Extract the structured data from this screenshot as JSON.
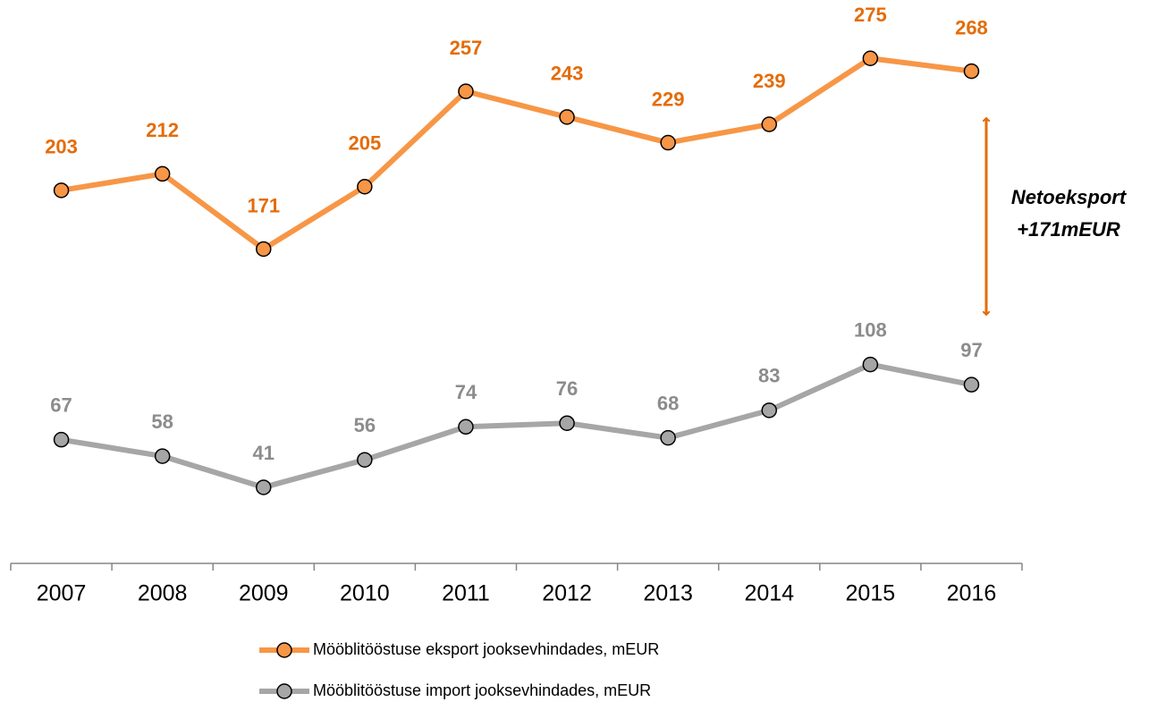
{
  "chart_data": {
    "type": "line",
    "categories": [
      "2007",
      "2008",
      "2009",
      "2010",
      "2011",
      "2012",
      "2013",
      "2014",
      "2015",
      "2016"
    ],
    "series": [
      {
        "name": "Mööblitööstuse eksport jooksevhindades, mEUR",
        "color": "#f79646",
        "label_color": "#e46c0a",
        "values": [
          203,
          212,
          171,
          205,
          257,
          243,
          229,
          239,
          275,
          268
        ]
      },
      {
        "name": "Mööblitööstuse import jooksevhindades, mEUR",
        "color": "#a6a6a6",
        "label_color": "#8c8c8c",
        "values": [
          67,
          58,
          41,
          56,
          74,
          76,
          68,
          83,
          108,
          97
        ]
      }
    ],
    "ylim": [
      0,
      300
    ],
    "annotation": [
      "Netoeksport",
      "+171mEUR"
    ]
  }
}
